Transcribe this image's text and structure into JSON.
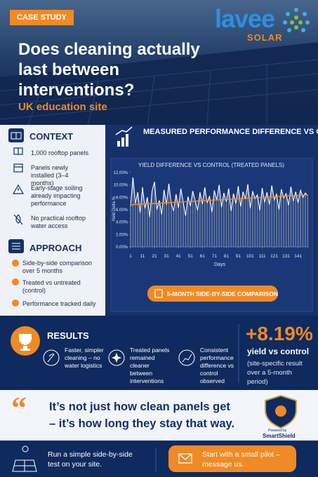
{
  "header": {
    "badge": "CASE STUDY",
    "logo": "lavee",
    "logo_sub": "SOLAR",
    "title": "Does cleaning actually last between interventions?",
    "subtitle": "UK education site"
  },
  "context": {
    "heading": "CONTEXT",
    "items": [
      "1,000 rooftop panels",
      "Panels newly installed (3–4 months)",
      "Early-stage soiling already impacting performance",
      "No practical rooftop water access"
    ]
  },
  "approach": {
    "heading": "APPROACH",
    "items": [
      "Side-by-side comparison over 5 months",
      "Treated vs untreated (control)",
      "Performance tracked daily"
    ]
  },
  "panel": {
    "heading": "MEASURED PERFORMANCE DIFFERENCE VS CONTROL OVER TIME",
    "button": "5-MONTH SIDE-BY-SIDE COMPARISON"
  },
  "chart_data": {
    "type": "line",
    "title": "YIELD DIFFERENCE VS CONTROL (TREATED PANELS)",
    "ylabel": "Yield Delta %",
    "xlabel": "Days",
    "x": [
      1,
      3,
      5,
      7,
      9,
      11,
      13,
      15,
      17,
      19,
      21,
      23,
      25,
      27,
      29,
      31,
      33,
      35,
      37,
      39,
      41,
      43,
      45,
      47,
      49,
      51,
      53,
      55,
      57,
      59,
      61,
      63,
      65,
      67,
      69,
      71,
      73,
      75,
      77,
      79,
      81,
      83,
      85,
      87,
      89,
      91,
      93,
      95,
      97,
      99,
      101,
      103,
      105,
      107,
      109,
      111,
      113,
      115,
      117,
      119,
      121,
      123,
      125,
      127,
      129,
      131,
      133,
      135,
      137,
      139,
      141,
      143,
      145,
      147,
      149
    ],
    "values": [
      6.5,
      11.2,
      7.0,
      8.8,
      5.5,
      9.6,
      6.2,
      8.0,
      4.8,
      9.0,
      10.5,
      6.0,
      7.5,
      5.2,
      9.2,
      6.8,
      10.2,
      7.0,
      5.8,
      8.5,
      6.3,
      9.4,
      7.2,
      5.0,
      8.1,
      6.6,
      9.0,
      7.4,
      5.9,
      8.8,
      6.9,
      9.6,
      7.1,
      8.2,
      5.6,
      9.1,
      7.5,
      10.0,
      6.4,
      8.7,
      7.3,
      9.4,
      5.8,
      8.6,
      7.0,
      9.8,
      6.5,
      8.9,
      7.7,
      10.1,
      6.2,
      9.0,
      7.8,
      8.4,
      5.9,
      9.5,
      7.2,
      8.8,
      6.8,
      9.9,
      7.6,
      8.5,
      6.0,
      9.3,
      7.9,
      8.6,
      6.7,
      9.7,
      7.4,
      8.9,
      7.1,
      9.2,
      8.0,
      8.7,
      8.3
    ],
    "color": "#ffffff",
    "bar_color": "rgba(255,255,255,0.3)",
    "trend": {
      "x": [
        1,
        149
      ],
      "values": [
        6.8,
        8.4
      ],
      "color": "#f08a24"
    },
    "xlim": [
      1,
      150
    ],
    "xticks": [
      1,
      11,
      21,
      31,
      41,
      51,
      61,
      71,
      81,
      91,
      101,
      111,
      121,
      131,
      141
    ],
    "ylim": [
      0,
      12
    ],
    "yticks": [
      {
        "value": 0,
        "label": "0.00%"
      },
      {
        "value": 2,
        "label": "2.00%"
      },
      {
        "value": 4,
        "label": "4.00%"
      },
      {
        "value": 6,
        "label": "6.00%"
      },
      {
        "value": 8,
        "label": "8.00%"
      },
      {
        "value": 10,
        "label": "10.00%"
      },
      {
        "value": 12,
        "label": "12.00%"
      }
    ],
    "grid": false
  },
  "results": {
    "heading": "RESULTS",
    "items": [
      "Faster, simpler cleaning – no water logistics",
      "Treated panels remained cleaner between interventions",
      "Consistent performance difference vs control observed"
    ],
    "stat": "+8.19%",
    "stat_label": "yield vs control",
    "note": "(site-specific result over a 5-month period)"
  },
  "quote": {
    "text": "It’s not just how clean panels get – it’s how long they stay that way.",
    "badge_small": "Powered by",
    "badge": "SmartShield"
  },
  "footer": {
    "left": "Run a simple side-by-side test on your site.",
    "cta": "Start with a small pilot – message us."
  }
}
